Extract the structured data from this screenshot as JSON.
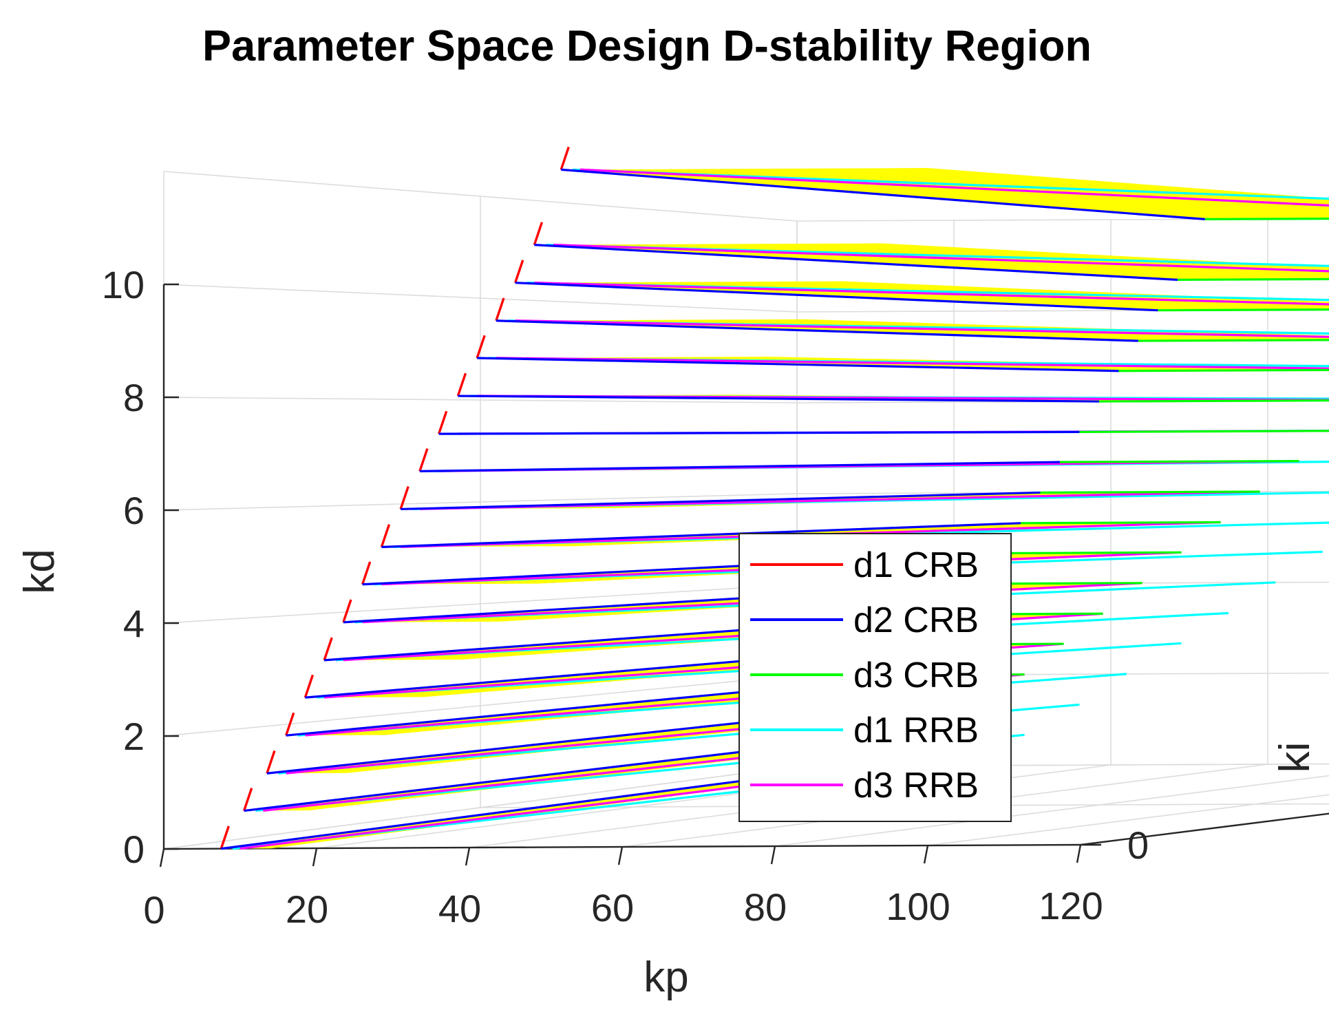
{
  "chart_data": {
    "type": "line",
    "view": "3d",
    "title": "Parameter Space Design D-stability Region",
    "xlabel": "kp",
    "ylabel": "ki",
    "zlabel": "kd",
    "xlim": [
      0,
      120
    ],
    "ylim": [
      0,
      200
    ],
    "zlim": [
      0,
      12
    ],
    "xticks": [
      "0",
      "20",
      "40",
      "60",
      "80",
      "100",
      "120"
    ],
    "yticks": [
      "0",
      "100",
      "200"
    ],
    "zticks": [
      "0",
      "2",
      "4",
      "6",
      "8",
      "10"
    ],
    "grid": true,
    "legend_position": "lower-right",
    "region_color": "#ffff00",
    "kd_levels": [
      0,
      0.67,
      1.33,
      2,
      2.67,
      3.33,
      4,
      4.67,
      5.33,
      6,
      6.67,
      7.33,
      8,
      8.67,
      9.33,
      10,
      10.67,
      12
    ],
    "slices": {
      "crb_kp_start": [
        7.5,
        10.5,
        13.5,
        16,
        18.5,
        21,
        23.5,
        26,
        28.5,
        31,
        33.5,
        36,
        38.5,
        41,
        43.5,
        46,
        48.5,
        52
      ],
      "crb_kp_end": [
        14,
        19,
        24,
        29,
        34,
        39,
        44,
        49,
        54,
        59,
        64,
        69,
        74,
        79,
        84,
        89,
        94,
        100
      ],
      "rrb_kp_end": [
        22,
        29,
        36,
        42,
        49,
        55,
        61,
        67,
        73,
        79,
        85,
        91,
        97,
        103,
        109,
        115,
        121,
        127
      ],
      "ki_max": 200
    },
    "series": [
      {
        "name": "d1 CRB",
        "color": "#ff0000"
      },
      {
        "name": "d2 CRB",
        "color": "#0000ff"
      },
      {
        "name": "d3 CRB",
        "color": "#00ff00"
      },
      {
        "name": "d1 RRB",
        "color": "#00ffff"
      },
      {
        "name": "d3 RRB",
        "color": "#ff00ff"
      }
    ]
  }
}
